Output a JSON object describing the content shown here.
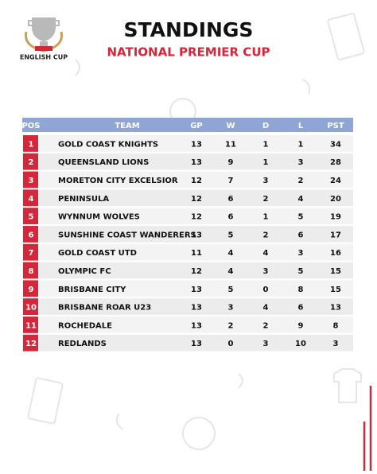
{
  "header": {
    "logo_text": "ENGLISH CUP",
    "title": "STANDINGS",
    "subtitle": "NATIONAL PREMIER CUP"
  },
  "table": {
    "columns": [
      "POS",
      "TEAM",
      "GP",
      "W",
      "D",
      "L",
      "PST"
    ],
    "rows": [
      [
        "1",
        "GOLD COAST KNIGHTS",
        "13",
        "11",
        "1",
        "1",
        "34"
      ],
      [
        "2",
        "QUEENSLAND LIONS",
        "13",
        "9",
        "1",
        "3",
        "28"
      ],
      [
        "3",
        "MORETON CITY EXCELSIOR",
        "12",
        "7",
        "3",
        "2",
        "24"
      ],
      [
        "4",
        "PENINSULA",
        "12",
        "6",
        "2",
        "4",
        "20"
      ],
      [
        "5",
        "WYNNUM WOLVES",
        "12",
        "6",
        "1",
        "5",
        "19"
      ],
      [
        "6",
        "SUNSHINE COAST WANDERERS",
        "13",
        "5",
        "2",
        "6",
        "17"
      ],
      [
        "7",
        "GOLD COAST UTD",
        "11",
        "4",
        "4",
        "3",
        "16"
      ],
      [
        "8",
        "OLYMPIC FC",
        "12",
        "4",
        "3",
        "5",
        "15"
      ],
      [
        "9",
        "BRISBANE CITY",
        "13",
        "5",
        "0",
        "8",
        "15"
      ],
      [
        "10",
        "BRISBANE ROAR U23",
        "13",
        "3",
        "4",
        "6",
        "13"
      ],
      [
        "11",
        "ROCHEDALE",
        "13",
        "2",
        "2",
        "9",
        "8"
      ],
      [
        "12",
        "REDLANDS",
        "13",
        "0",
        "3",
        "10",
        "3"
      ]
    ]
  }
}
